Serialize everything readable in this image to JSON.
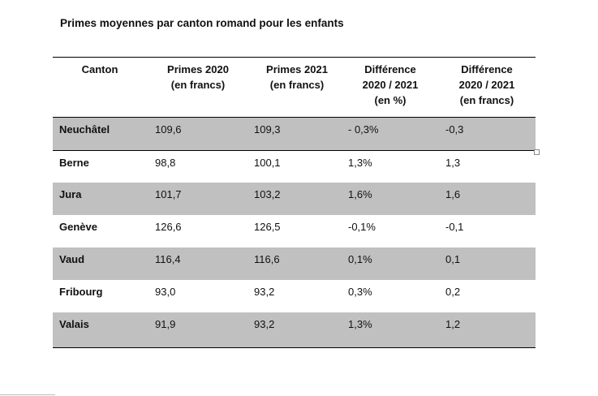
{
  "title": "Primes moyennes par canton romand pour les enfants",
  "headers": [
    "Canton",
    "Primes 2020\n(en francs)",
    "Primes 2021\n(en francs)",
    "Différence\n2020 / 2021\n(en %)",
    "Différence\n2020 / 2021\n(en francs)"
  ],
  "rows": [
    {
      "canton": "Neuchâtel",
      "p2020": "109,6",
      "p2021": "109,3",
      "diff_pct": "- 0,3%",
      "diff_fr": "-0,3"
    },
    {
      "canton": "Berne",
      "p2020": "98,8",
      "p2021": "100,1",
      "diff_pct": "1,3%",
      "diff_fr": "1,3"
    },
    {
      "canton": "Jura",
      "p2020": "101,7",
      "p2021": "103,2",
      "diff_pct": "1,6%",
      "diff_fr": "1,6"
    },
    {
      "canton": "Genève",
      "p2020": "126,6",
      "p2021": "126,5",
      "diff_pct": "-0,1%",
      "diff_fr": "-0,1"
    },
    {
      "canton": "Vaud",
      "p2020": "116,4",
      "p2021": "116,6",
      "diff_pct": "0,1%",
      "diff_fr": "0,1"
    },
    {
      "canton": "Fribourg",
      "p2020": "93,0",
      "p2021": "93,2",
      "diff_pct": "0,3%",
      "diff_fr": "0,2"
    },
    {
      "canton": "Valais",
      "p2020": "91,9",
      "p2021": "93,2",
      "diff_pct": "1,3%",
      "diff_fr": "1,2"
    }
  ],
  "colors": {
    "row_shade": "#c0c0c0",
    "rule": "#000000"
  }
}
